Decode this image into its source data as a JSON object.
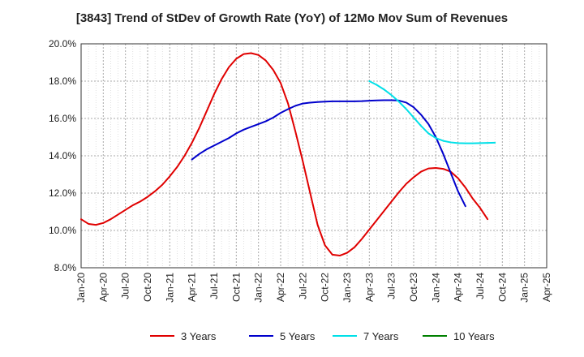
{
  "chart_data": {
    "type": "line",
    "title": "[3843]  Trend of StDev of Growth Rate (YoY) of 12Mo Mov Sum of Revenues",
    "xlabel": "",
    "ylabel": "",
    "ylim": [
      8.0,
      20.0
    ],
    "yticks": [
      8.0,
      10.0,
      12.0,
      14.0,
      16.0,
      18.0,
      20.0
    ],
    "ytick_labels": [
      "8.0%",
      "10.0%",
      "12.0%",
      "14.0%",
      "16.0%",
      "18.0%",
      "20.0%"
    ],
    "x_start": "Jan-20",
    "xtick_labels": [
      "Jan-20",
      "Apr-20",
      "Jul-20",
      "Oct-20",
      "Jan-21",
      "Apr-21",
      "Jul-21",
      "Oct-21",
      "Jan-22",
      "Apr-22",
      "Jul-22",
      "Oct-22",
      "Jan-23",
      "Apr-23",
      "Jul-23",
      "Oct-23",
      "Jan-24",
      "Apr-24",
      "Jul-24",
      "Oct-24",
      "Jan-25",
      "Apr-25"
    ],
    "xlim_months": [
      0,
      63
    ],
    "grid": true,
    "legend_position": "bottom",
    "series": [
      {
        "name": "3 Years",
        "color": "#e00000",
        "start_month": 0,
        "values": [
          10.6,
          10.35,
          10.3,
          10.4,
          10.6,
          10.85,
          11.1,
          11.35,
          11.55,
          11.8,
          12.1,
          12.45,
          12.9,
          13.4,
          14.0,
          14.7,
          15.5,
          16.4,
          17.3,
          18.1,
          18.75,
          19.2,
          19.45,
          19.5,
          19.4,
          19.1,
          18.6,
          17.9,
          16.8,
          15.3,
          13.7,
          12.0,
          10.3,
          9.2,
          8.7,
          8.65,
          8.8,
          9.1,
          9.55,
          10.05,
          10.55,
          11.05,
          11.55,
          12.05,
          12.5,
          12.85,
          13.15,
          13.32,
          13.35,
          13.3,
          13.15,
          12.8,
          12.3,
          11.7,
          11.2,
          10.6
        ]
      },
      {
        "name": "5 Years",
        "color": "#0000cc",
        "start_month": 15,
        "values": [
          13.8,
          14.1,
          14.35,
          14.55,
          14.75,
          14.95,
          15.2,
          15.4,
          15.55,
          15.7,
          15.85,
          16.05,
          16.3,
          16.5,
          16.68,
          16.8,
          16.85,
          16.88,
          16.9,
          16.92,
          16.92,
          16.92,
          16.92,
          16.93,
          16.95,
          16.97,
          16.98,
          16.98,
          16.96,
          16.85,
          16.6,
          16.2,
          15.7,
          15.0,
          14.1,
          13.1,
          12.1,
          11.3
        ]
      },
      {
        "name": "7 Years",
        "color": "#00e0e8",
        "start_month": 39,
        "values": [
          18.0,
          17.8,
          17.55,
          17.25,
          16.9,
          16.5,
          16.05,
          15.6,
          15.2,
          14.95,
          14.8,
          14.72,
          14.68,
          14.67,
          14.67,
          14.68,
          14.69,
          14.7
        ]
      },
      {
        "name": "10 Years",
        "color": "#008000",
        "start_month": 0,
        "values": []
      }
    ]
  }
}
